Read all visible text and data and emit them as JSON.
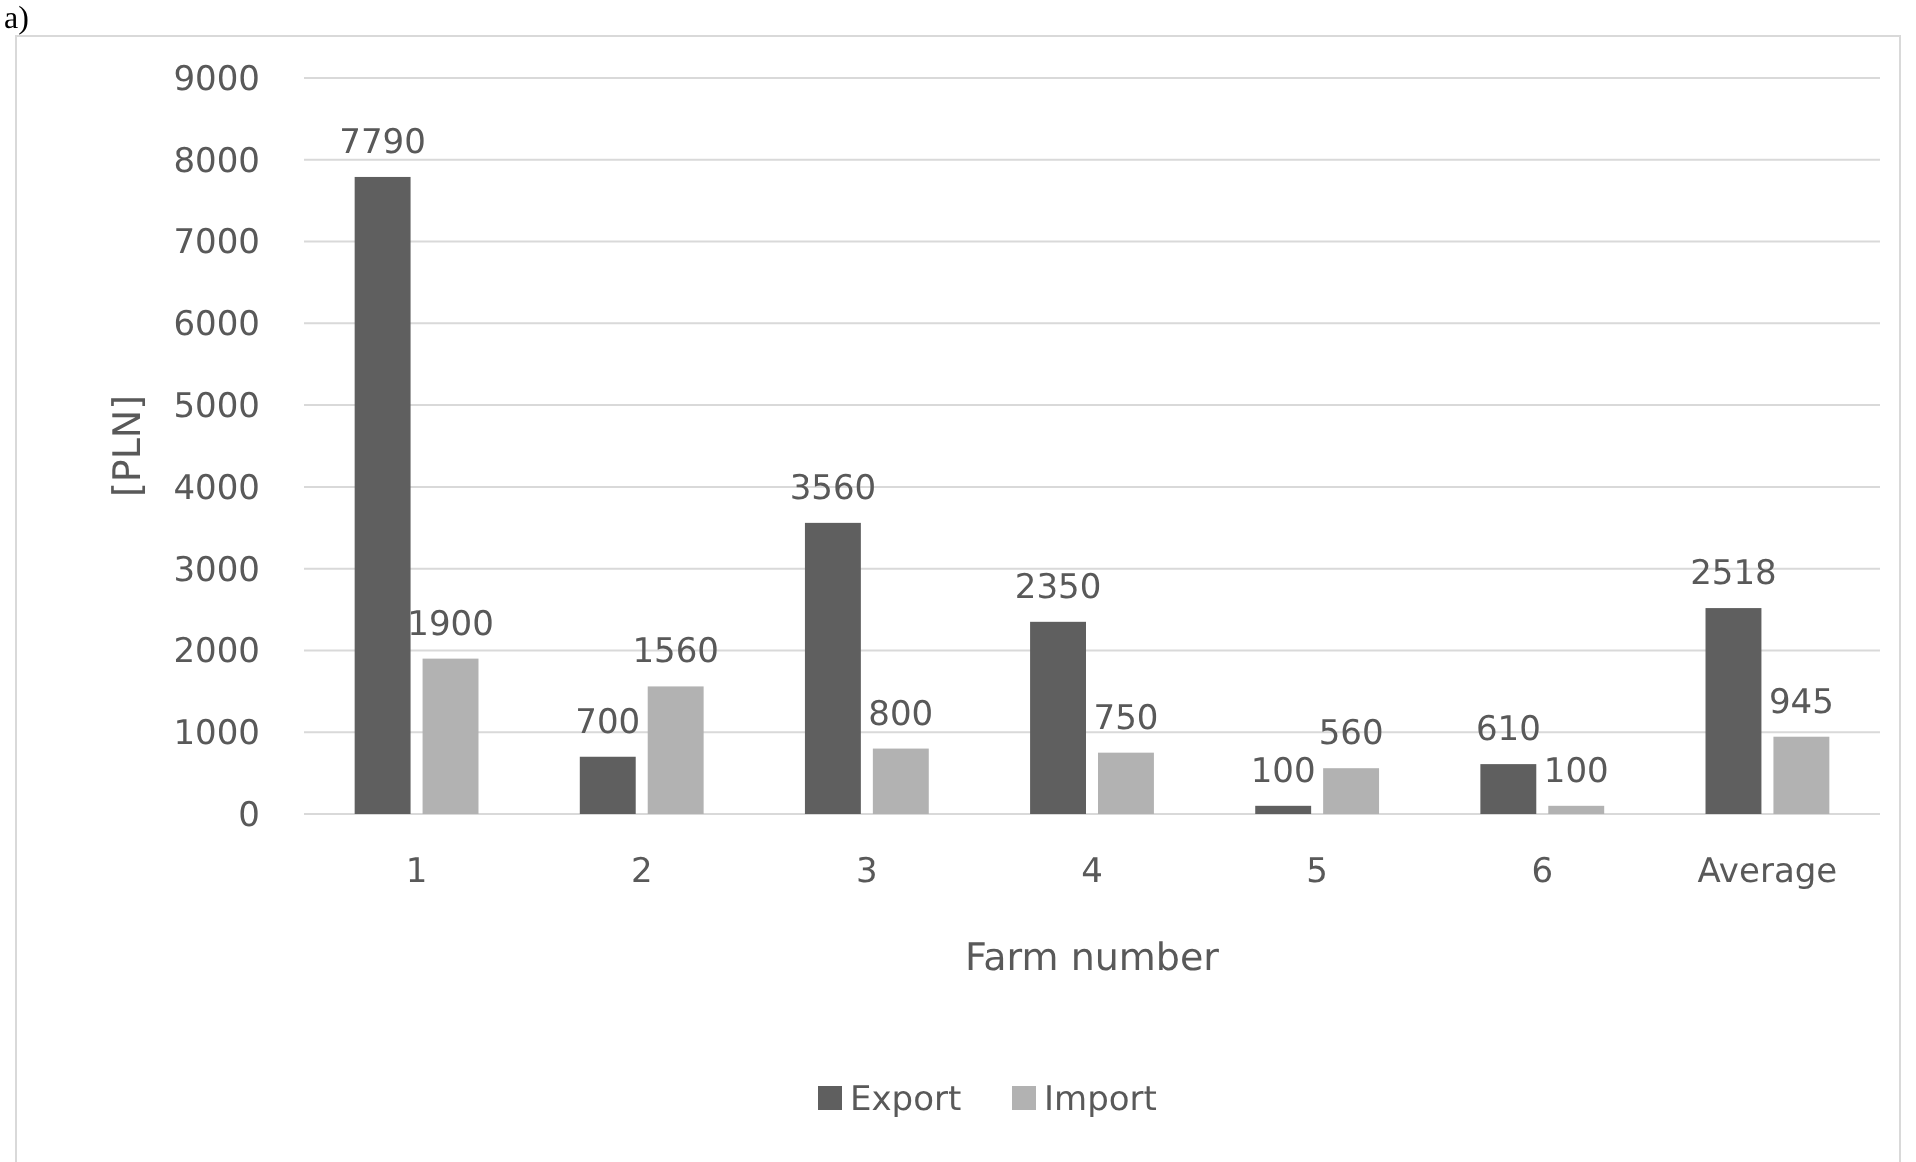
{
  "chart_data": {
    "type": "bar",
    "xlabel": "Farm number",
    "ylabel": "[PLN]",
    "annotations": [
      "a)"
    ],
    "categories": [
      "1",
      "2",
      "3",
      "4",
      "5",
      "6",
      "Average"
    ],
    "series": [
      {
        "name": "Export",
        "color": "#5f5f5f",
        "values": [
          7790,
          700,
          3560,
          2350,
          100,
          610,
          2518
        ]
      },
      {
        "name": "Import",
        "color": "#b2b2b2",
        "values": [
          1900,
          1560,
          800,
          750,
          560,
          100,
          945
        ]
      }
    ],
    "ylim": [
      0,
      9000
    ],
    "yticks": [
      0,
      1000,
      2000,
      3000,
      4000,
      5000,
      6000,
      7000,
      8000,
      9000
    ],
    "grid": "y",
    "legend": "bottom",
    "data_labels": true
  }
}
